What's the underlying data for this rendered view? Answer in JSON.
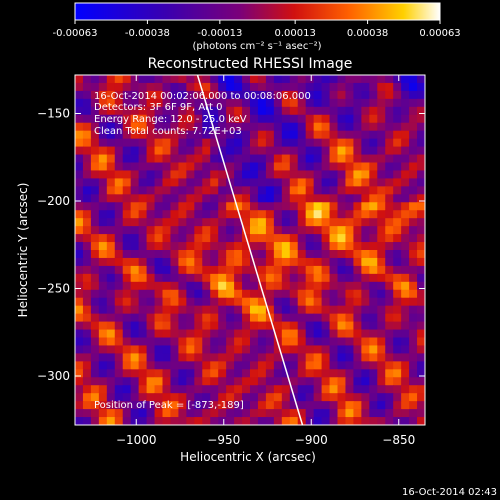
{
  "chart_data": {
    "type": "heatmap",
    "title": "Reconstructed RHESSI Image",
    "xlabel": "Heliocentric X (arcsec)",
    "ylabel": "Heliocentric Y (arcsec)",
    "xlim": [
      -1035,
      -835
    ],
    "ylim": [
      -328,
      -128
    ],
    "x_ticks": [
      -1000,
      -950,
      -900,
      -850
    ],
    "y_ticks": [
      -150,
      -200,
      -250,
      -300
    ],
    "colorbar": {
      "ticks": [
        "-0.00063",
        "-0.00038",
        "-0.00013",
        "0.00013",
        "0.00038",
        "0.00063"
      ],
      "range": [
        -0.00063,
        0.00063
      ],
      "units_label": "(photons cm⁻² s⁻¹ asec⁻²)",
      "colormap": "blue-purple-red-orange-yellow-white"
    },
    "annotations": [
      "16-Oct-2014 00:02:06.000 to 00:08:06.000",
      "Detectors: 3F 6F 9F, Att 0",
      "Energy Range: 12.0 - 25.0 keV",
      "Clean     Total counts: 7.72E+03"
    ],
    "peak_label": "Position of Peak = [-873,-189]",
    "peak": [
      -873,
      -189
    ],
    "limb_line": {
      "from": [
        -965,
        -128
      ],
      "to": [
        -905,
        -328
      ]
    }
  },
  "timestamp": "16-Oct-2014 02:43"
}
